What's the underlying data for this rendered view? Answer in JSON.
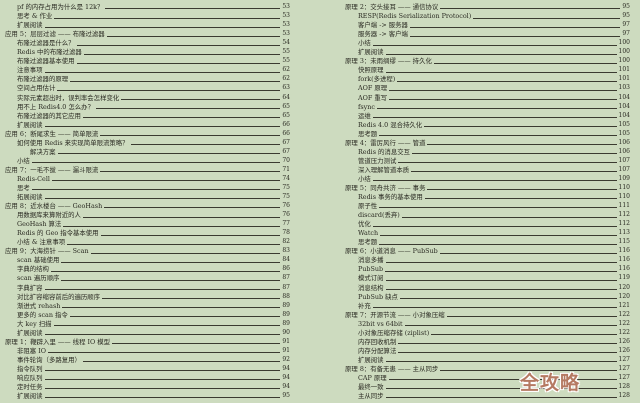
{
  "toc_left": [
    {
      "t": "pf 的内存占用为什么是 12k？",
      "p": "53",
      "l": 1
    },
    {
      "t": "思考 & 作业",
      "p": "53",
      "l": 1
    },
    {
      "t": "扩展阅读",
      "p": "53",
      "l": 1
    },
    {
      "t": "应用 5：层层过滤 —— 布隆过滤器",
      "p": "53",
      "l": 0
    },
    {
      "t": "布隆过滤器是什么？",
      "p": "54",
      "l": 1
    },
    {
      "t": "Redis 中的布隆过滤器",
      "p": "55",
      "l": 1
    },
    {
      "t": "布隆过滤器基本使用",
      "p": "55",
      "l": 1
    },
    {
      "t": "注意事项",
      "p": "62",
      "l": 1
    },
    {
      "t": "布隆过滤器的原理",
      "p": "62",
      "l": 1
    },
    {
      "t": "空间占用估计",
      "p": "63",
      "l": 1
    },
    {
      "t": "实际元素超出时，误判率会怎样变化",
      "p": "64",
      "l": 1
    },
    {
      "t": "用不上 Redis4.0 怎么办？",
      "p": "65",
      "l": 1
    },
    {
      "t": "布隆过滤器的其它应用",
      "p": "65",
      "l": 1
    },
    {
      "t": "扩展阅读",
      "p": "66",
      "l": 1
    },
    {
      "t": "应用 6：断尾求生 —— 简单限流",
      "p": "66",
      "l": 0
    },
    {
      "t": "如何使用 Redis 来实现简单限流策略？",
      "p": "67",
      "l": 1
    },
    {
      "t": "解决方案",
      "p": "67",
      "l": 2
    },
    {
      "t": "小结",
      "p": "70",
      "l": 1
    },
    {
      "t": "应用 7：一毛不拔 —— 漏斗限流",
      "p": "71",
      "l": 0
    },
    {
      "t": "Redis-Cell",
      "p": "74",
      "l": 1
    },
    {
      "t": "思考",
      "p": "75",
      "l": 1
    },
    {
      "t": "拓展阅读",
      "p": "75",
      "l": 1
    },
    {
      "t": "应用 8：近水楼台 —— GeoHash",
      "p": "76",
      "l": 0
    },
    {
      "t": "用数据库来算附近的人",
      "p": "76",
      "l": 1
    },
    {
      "t": "GeoHash 算法",
      "p": "77",
      "l": 1
    },
    {
      "t": "Redis 的 Geo 指令基本使用",
      "p": "78",
      "l": 1
    },
    {
      "t": "小结 & 注意事项",
      "p": "82",
      "l": 1
    },
    {
      "t": "应用 9：大海捞针 —— Scan",
      "p": "83",
      "l": 0
    },
    {
      "t": "scan 基础使用",
      "p": "84",
      "l": 1
    },
    {
      "t": "字典的结构",
      "p": "86",
      "l": 1
    },
    {
      "t": "scan 遍历顺序",
      "p": "87",
      "l": 1
    },
    {
      "t": "字典扩容",
      "p": "87",
      "l": 1
    },
    {
      "t": "对比扩容缩容前后的遍历顺序",
      "p": "88",
      "l": 1
    },
    {
      "t": "渐进式 rehash",
      "p": "89",
      "l": 1
    },
    {
      "t": "更多的 scan 指令",
      "p": "89",
      "l": 1
    },
    {
      "t": "大 key 扫描",
      "p": "89",
      "l": 1
    },
    {
      "t": "扩展阅读",
      "p": "90",
      "l": 1
    },
    {
      "t": "原理 1：鞭辟入里 —— 线程 IO 模型",
      "p": "91",
      "l": 0
    },
    {
      "t": "非阻塞 IO",
      "p": "91",
      "l": 1
    },
    {
      "t": "事件轮询（多路复用）",
      "p": "92",
      "l": 1
    },
    {
      "t": "指令队列",
      "p": "94",
      "l": 1
    },
    {
      "t": "响应队列",
      "p": "94",
      "l": 1
    },
    {
      "t": "定时任务",
      "p": "94",
      "l": 1
    },
    {
      "t": "扩展阅读",
      "p": "95",
      "l": 1
    }
  ],
  "toc_right": [
    {
      "t": "原理 2：交头接耳 —— 通信协议",
      "p": "95",
      "l": 0
    },
    {
      "t": "RESP(Redis Serialization Protocol)",
      "p": "95",
      "l": 1
    },
    {
      "t": "客户端 -> 服务器",
      "p": "97",
      "l": 1
    },
    {
      "t": "服务器 -> 客户端",
      "p": "97",
      "l": 1
    },
    {
      "t": "小结",
      "p": "100",
      "l": 1
    },
    {
      "t": "扩展阅读",
      "p": "100",
      "l": 1
    },
    {
      "t": "原理 3：未雨绸缪 —— 持久化",
      "p": "100",
      "l": 0
    },
    {
      "t": "快照原理",
      "p": "101",
      "l": 1
    },
    {
      "t": "fork(多进程)",
      "p": "101",
      "l": 1
    },
    {
      "t": "AOF 原理",
      "p": "103",
      "l": 1
    },
    {
      "t": "AOF 重写",
      "p": "104",
      "l": 1
    },
    {
      "t": "fsync",
      "p": "104",
      "l": 1
    },
    {
      "t": "运维",
      "p": "104",
      "l": 1
    },
    {
      "t": "Redis 4.0 混合持久化",
      "p": "105",
      "l": 1
    },
    {
      "t": "思考题",
      "p": "105",
      "l": 1
    },
    {
      "t": "原理 4：雷厉风行 —— 管道",
      "p": "106",
      "l": 0
    },
    {
      "t": "Redis 的消息交互",
      "p": "106",
      "l": 1
    },
    {
      "t": "管道压力测试",
      "p": "107",
      "l": 1
    },
    {
      "t": "深入理解管道本质",
      "p": "107",
      "l": 1
    },
    {
      "t": "小结",
      "p": "109",
      "l": 1
    },
    {
      "t": "原理 5：同舟共济 —— 事务",
      "p": "110",
      "l": 0
    },
    {
      "t": "Redis 事务的基本使用",
      "p": "110",
      "l": 1
    },
    {
      "t": "原子性",
      "p": "111",
      "l": 1
    },
    {
      "t": "discard(丢弃)",
      "p": "112",
      "l": 1
    },
    {
      "t": "优化",
      "p": "112",
      "l": 1
    },
    {
      "t": "Watch",
      "p": "113",
      "l": 1
    },
    {
      "t": "思考题",
      "p": "115",
      "l": 1
    },
    {
      "t": "原理 6：小道消息 —— PubSub",
      "p": "116",
      "l": 0
    },
    {
      "t": "消息多播",
      "p": "116",
      "l": 1
    },
    {
      "t": "PubSub",
      "p": "116",
      "l": 1
    },
    {
      "t": "模式订阅",
      "p": "119",
      "l": 1
    },
    {
      "t": "消息结构",
      "p": "120",
      "l": 1
    },
    {
      "t": "PubSub 缺点",
      "p": "120",
      "l": 1
    },
    {
      "t": "补充",
      "p": "121",
      "l": 1
    },
    {
      "t": "原理 7：开源节流 —— 小对象压缩",
      "p": "122",
      "l": 0
    },
    {
      "t": "32bit vs 64bit",
      "p": "122",
      "l": 1
    },
    {
      "t": "小对象压缩存储 (ziplist)",
      "p": "122",
      "l": 1
    },
    {
      "t": "内存回收机制",
      "p": "126",
      "l": 1
    },
    {
      "t": "内存分配算法",
      "p": "126",
      "l": 1
    },
    {
      "t": "扩展阅读",
      "p": "127",
      "l": 1
    },
    {
      "t": "原理 8：有备无患 —— 主从同步",
      "p": "127",
      "l": 0
    },
    {
      "t": "CAP 原理",
      "p": "127",
      "l": 1
    },
    {
      "t": "最终一致",
      "p": "128",
      "l": 1
    },
    {
      "t": "主从同步",
      "p": "128",
      "l": 1
    }
  ],
  "watermark": "全攻略",
  "colors": {
    "background": "#cddbbf",
    "text": "#2a2a22",
    "watermark": "#b57a62"
  }
}
